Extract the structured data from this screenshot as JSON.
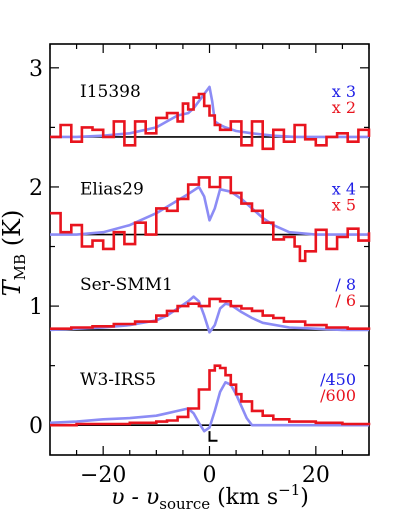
{
  "chart_data": {
    "type": "line",
    "title": "",
    "xlabel_parts": {
      "main": "υ - υ",
      "sub": "source",
      "unit": " (km s",
      "exp": "−1",
      "close": ")"
    },
    "ylabel_parts": {
      "main": "T",
      "sub": "MB",
      "unit": " (K)"
    },
    "xlim": [
      -30,
      30
    ],
    "ylim": [
      -0.25,
      3.2
    ],
    "xticks": [
      -20,
      0,
      20
    ],
    "xtick_labels": [
      "−20",
      "0",
      "20"
    ],
    "yticks": [
      0,
      1,
      2,
      3
    ],
    "ytick_labels": [
      "0",
      "1",
      "2",
      "3"
    ],
    "grid": false,
    "colors": {
      "blue": "#8c8cf5",
      "red": "#e8141e",
      "axis": "#000000"
    },
    "panels": [
      {
        "label": "I15398",
        "baseline": 2.42,
        "scale_blue": "x 3",
        "scale_red": "x 2",
        "blue_x": [
          -30,
          -25,
          -20,
          -15,
          -10,
          -8,
          -6,
          -4,
          -3,
          -2,
          -1,
          0,
          0.5,
          1,
          2,
          3,
          5,
          8,
          12,
          16,
          20,
          25,
          30
        ],
        "blue_y": [
          2.42,
          2.42,
          2.43,
          2.45,
          2.5,
          2.55,
          2.6,
          2.62,
          2.66,
          2.72,
          2.78,
          2.84,
          2.72,
          2.55,
          2.52,
          2.5,
          2.47,
          2.45,
          2.43,
          2.42,
          2.42,
          2.42,
          2.42
        ],
        "red_x": [
          -30,
          -28,
          -26,
          -24,
          -22,
          -20,
          -18,
          -16,
          -14,
          -12,
          -10,
          -8,
          -6,
          -5,
          -4,
          -3,
          -2,
          -1,
          0,
          1,
          2,
          4,
          6,
          8,
          10,
          12,
          14,
          16,
          18,
          20,
          22,
          24,
          26,
          28,
          30
        ],
        "red_y": [
          2.42,
          2.52,
          2.38,
          2.5,
          2.48,
          2.42,
          2.55,
          2.35,
          2.55,
          2.45,
          2.58,
          2.62,
          2.55,
          2.7,
          2.65,
          2.75,
          2.78,
          2.68,
          2.6,
          2.52,
          2.48,
          2.55,
          2.35,
          2.55,
          2.32,
          2.48,
          2.38,
          2.52,
          2.4,
          2.35,
          2.42,
          2.45,
          2.38,
          2.48,
          2.42
        ]
      },
      {
        "label": "Elias29",
        "baseline": 1.6,
        "scale_blue": "x 4",
        "scale_red": "x 5",
        "blue_x": [
          -30,
          -25,
          -20,
          -15,
          -10,
          -7,
          -4,
          -2,
          -1,
          0,
          1,
          2,
          4,
          6,
          8,
          10,
          12,
          15,
          20,
          25,
          30
        ],
        "blue_y": [
          1.6,
          1.6,
          1.62,
          1.68,
          1.78,
          1.86,
          1.94,
          2.0,
          1.92,
          1.72,
          1.82,
          1.98,
          1.96,
          1.9,
          1.82,
          1.74,
          1.68,
          1.62,
          1.6,
          1.6,
          1.6
        ],
        "red_x": [
          -30,
          -28,
          -26,
          -24,
          -22,
          -20,
          -18,
          -16,
          -14,
          -12,
          -10,
          -8,
          -6,
          -4,
          -2,
          0,
          2,
          4,
          6,
          8,
          10,
          12,
          14,
          16,
          17,
          18,
          20,
          22,
          24,
          26,
          28,
          30
        ],
        "red_y": [
          1.78,
          1.62,
          1.68,
          1.5,
          1.55,
          1.48,
          1.62,
          1.52,
          1.7,
          1.6,
          1.82,
          1.8,
          1.9,
          2.02,
          2.08,
          2.0,
          2.08,
          1.95,
          1.86,
          1.8,
          1.7,
          1.56,
          1.58,
          1.5,
          1.38,
          1.46,
          1.64,
          1.48,
          1.58,
          1.65,
          1.55,
          1.62
        ]
      },
      {
        "label": "Ser-SMM1",
        "baseline": 0.8,
        "scale_blue": "/ 8",
        "scale_red": "/ 6",
        "blue_x": [
          -30,
          -25,
          -20,
          -15,
          -10,
          -8,
          -6,
          -4,
          -3,
          -2,
          -1,
          0,
          1,
          2,
          3,
          4,
          6,
          8,
          10,
          15,
          20,
          25,
          30
        ],
        "blue_y": [
          0.8,
          0.81,
          0.82,
          0.84,
          0.88,
          0.92,
          0.98,
          1.04,
          1.08,
          1.04,
          0.92,
          0.78,
          0.84,
          0.98,
          1.02,
          1.01,
          0.95,
          0.9,
          0.86,
          0.82,
          0.81,
          0.8,
          0.8
        ],
        "red_x": [
          -30,
          -26,
          -22,
          -18,
          -14,
          -10,
          -8,
          -6,
          -4,
          -2,
          0,
          2,
          4,
          6,
          8,
          10,
          12,
          14,
          18,
          22,
          26,
          30
        ],
        "red_y": [
          0.81,
          0.82,
          0.83,
          0.85,
          0.87,
          0.92,
          0.96,
          1.0,
          1.02,
          1.0,
          1.06,
          1.04,
          1.0,
          0.98,
          0.96,
          0.92,
          0.9,
          0.87,
          0.84,
          0.82,
          0.81,
          0.8
        ]
      },
      {
        "label": "W3-IRS5",
        "baseline": 0.0,
        "scale_blue": "/450",
        "scale_red": "/600",
        "blue_x": [
          -30,
          -25,
          -20,
          -15,
          -10,
          -8,
          -6,
          -4,
          -3,
          -2,
          -1,
          0,
          1,
          2,
          3,
          4,
          5,
          6,
          7,
          8,
          10,
          12,
          15,
          20,
          25,
          30
        ],
        "blue_y": [
          0.02,
          0.03,
          0.05,
          0.06,
          0.08,
          0.1,
          0.12,
          0.14,
          0.1,
          0.02,
          -0.05,
          -0.02,
          0.12,
          0.28,
          0.36,
          0.34,
          0.26,
          0.16,
          0.06,
          0.0,
          0.0,
          0.0,
          0.0,
          0.0,
          0.0,
          0.0
        ],
        "red_x": [
          -30,
          -25,
          -20,
          -15,
          -10,
          -8,
          -6,
          -4,
          -2,
          0,
          1,
          2,
          3,
          4,
          5,
          6,
          8,
          10,
          12,
          15,
          20,
          25,
          30
        ],
        "red_y": [
          0.0,
          0.01,
          0.01,
          0.02,
          0.03,
          0.04,
          0.07,
          0.14,
          0.3,
          0.46,
          0.5,
          0.48,
          0.42,
          0.34,
          0.26,
          0.2,
          0.12,
          0.08,
          0.05,
          0.03,
          0.02,
          0.01,
          0.0
        ]
      }
    ]
  }
}
